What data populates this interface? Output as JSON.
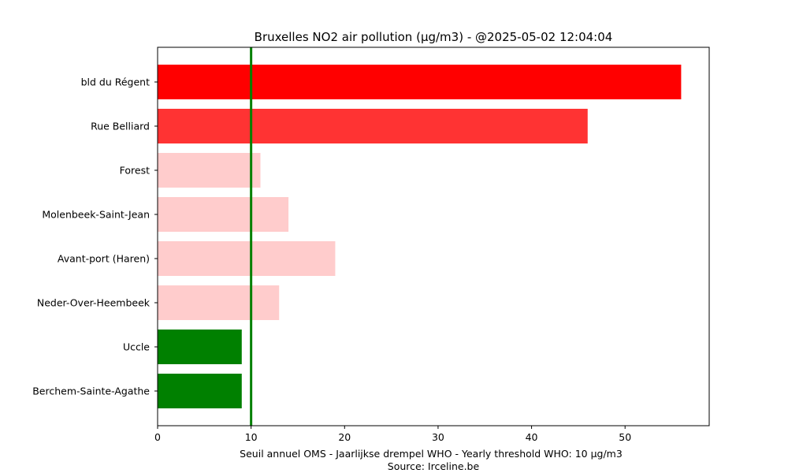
{
  "chart_data": {
    "type": "bar",
    "orientation": "horizontal",
    "title": "Bruxelles NO2 air pollution (µg/m3) - @2025-05-02 12:04:04",
    "xlabel": "Seuil annuel OMS - Jaarlijkse drempel WHO - Yearly threshold WHO: 10 µg/m3",
    "xlabel_source": "Source: Irceline.be",
    "ylabel": "",
    "categories": [
      "bld du Régent",
      "Rue Belliard",
      "Forest",
      "Molenbeek-Saint-Jean",
      "Avant-port (Haren)",
      "Neder-Over-Heembeek",
      "Uccle",
      "Berchem-Sainte-Agathe"
    ],
    "values": [
      56,
      46,
      11,
      14,
      19,
      13,
      9,
      9
    ],
    "colors": [
      "#ff0000",
      "#ff3333",
      "#ffcccc",
      "#ffcccc",
      "#ffcccc",
      "#ffcccc",
      "#008000",
      "#008000"
    ],
    "xlim": [
      0,
      59
    ],
    "xticks": [
      0,
      10,
      20,
      30,
      40,
      50
    ],
    "threshold": {
      "value": 10,
      "color": "#008000"
    },
    "grid": false,
    "legend": "none"
  }
}
